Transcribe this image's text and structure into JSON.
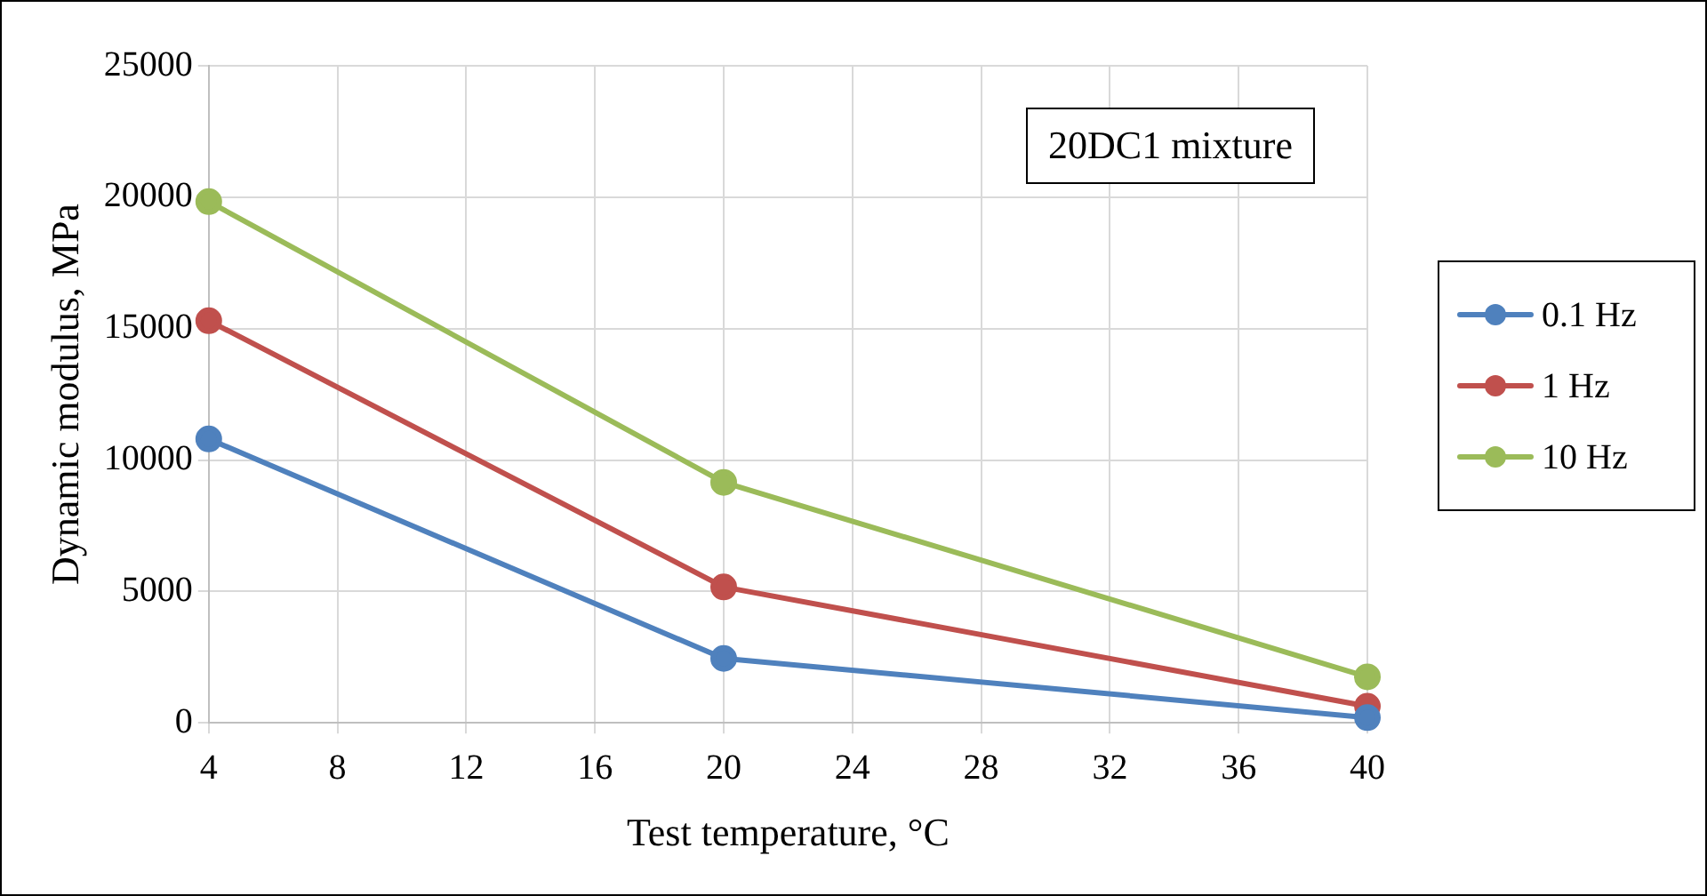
{
  "chart_data": {
    "type": "line",
    "xlabel": "Test temperature, °C",
    "ylabel": "Dynamic modulus, MPa",
    "x": [
      4,
      20,
      40
    ],
    "series": [
      {
        "name": "0.1 Hz",
        "color": "#4f81bd",
        "values": [
          10800,
          2450,
          200
        ]
      },
      {
        "name": "1 Hz",
        "color": "#c0504d",
        "values": [
          15300,
          5170,
          630
        ]
      },
      {
        "name": "10 Hz",
        "color": "#9bbb59",
        "values": [
          19830,
          9150,
          1750
        ]
      }
    ],
    "xlim": [
      4,
      40
    ],
    "xticks": [
      4,
      8,
      12,
      16,
      20,
      24,
      28,
      32,
      36,
      40
    ],
    "ylim": [
      0,
      25000
    ],
    "yticks": [
      0,
      5000,
      10000,
      15000,
      20000,
      25000
    ],
    "grid": true,
    "legend": "right",
    "marker": "circle",
    "line_style": "solid",
    "annotations": [
      "20DC1 mixture"
    ]
  }
}
